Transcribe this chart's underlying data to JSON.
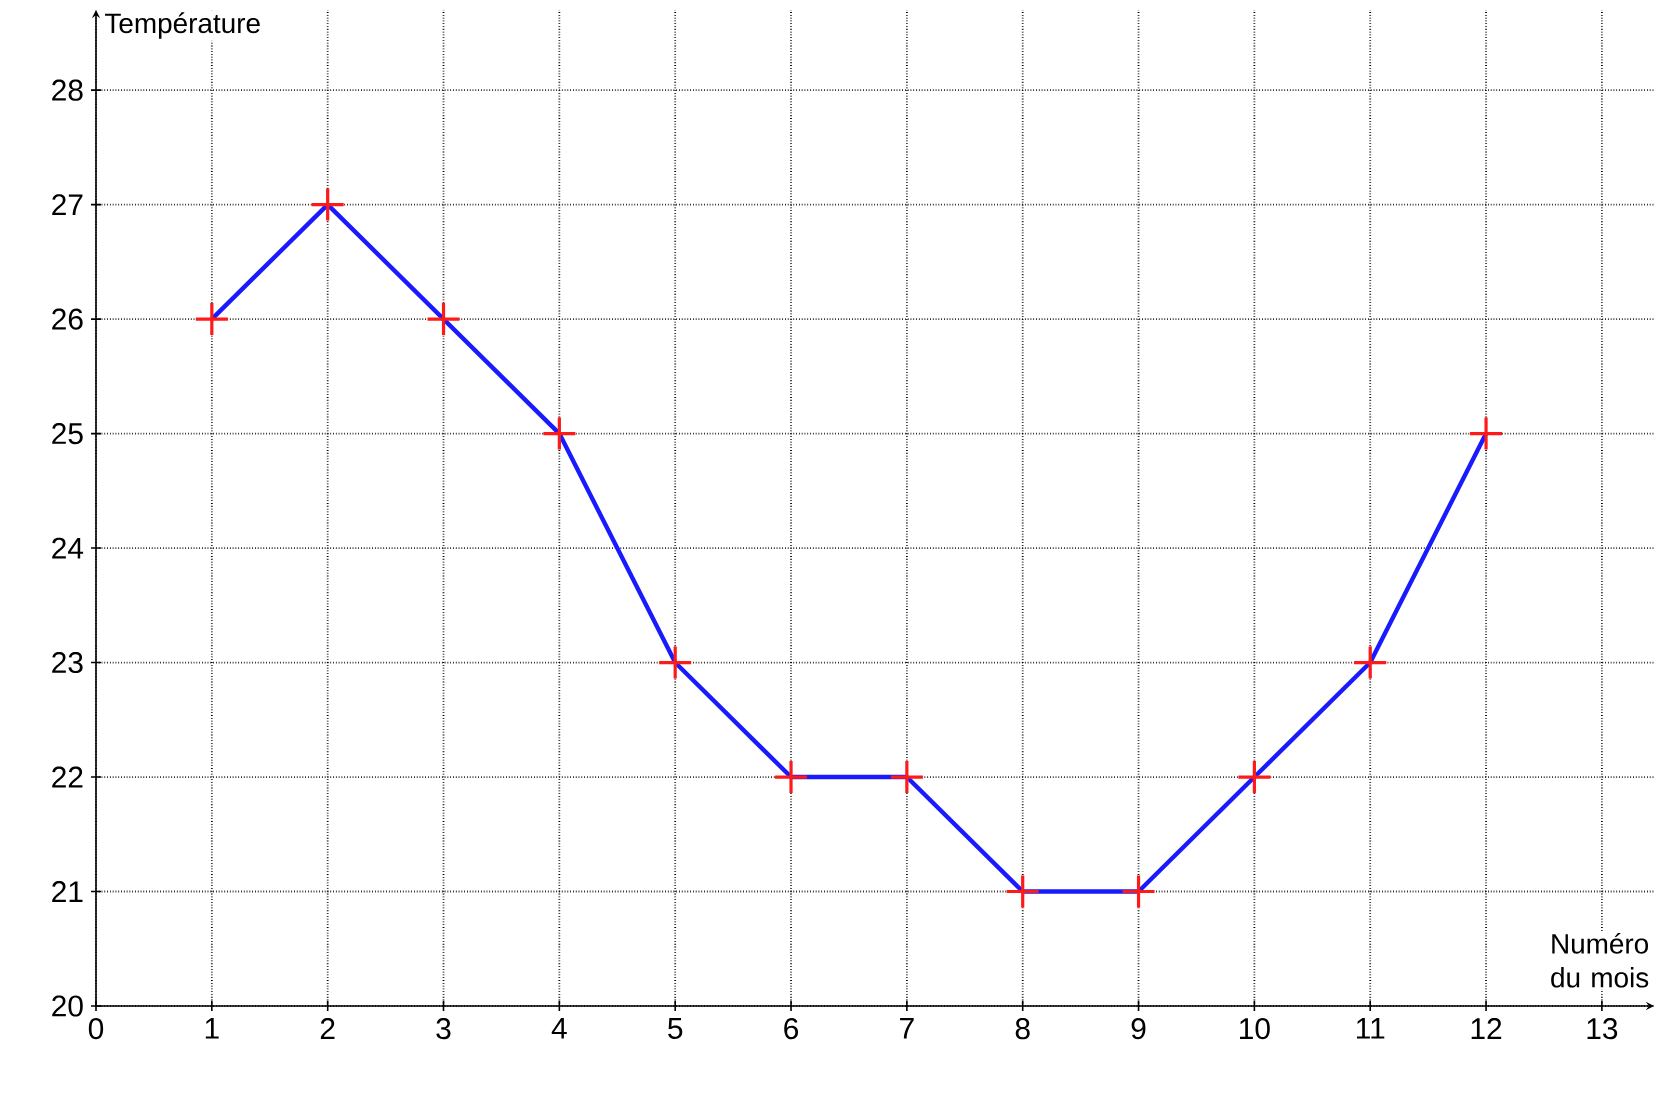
{
  "chart_data": {
    "type": "line",
    "xlabel": "Numéro du mois",
    "ylabel": "Température",
    "x": [
      1,
      2,
      3,
      4,
      5,
      6,
      7,
      8,
      9,
      10,
      11,
      12
    ],
    "series": [
      {
        "color": "#1a1aff",
        "colors": [
          "#ff1a1a",
          "#ff1a1a",
          "#ff1a1a",
          "#ff1a1a",
          "#ff1a1a",
          "#ff1a1a",
          "#ff1a1a",
          "#ff1a1a",
          "#ff1a1a",
          "#ff1a1a",
          "#ff1a1a",
          "#ff1a1a"
        ],
        "values": [
          26,
          27,
          26,
          25,
          23,
          22,
          22,
          21,
          21,
          22,
          23,
          25
        ]
      }
    ],
    "xlim": [
      0,
      13.45
    ],
    "ylim": [
      20,
      28.7
    ],
    "xticks": [
      0,
      1,
      2,
      3,
      4,
      5,
      6,
      7,
      8,
      9,
      10,
      11,
      12,
      13
    ],
    "yticks": [
      20,
      21,
      22,
      23,
      24,
      25,
      26,
      27,
      28
    ],
    "grid": true,
    "marker": "cross",
    "line_style": "solid"
  }
}
